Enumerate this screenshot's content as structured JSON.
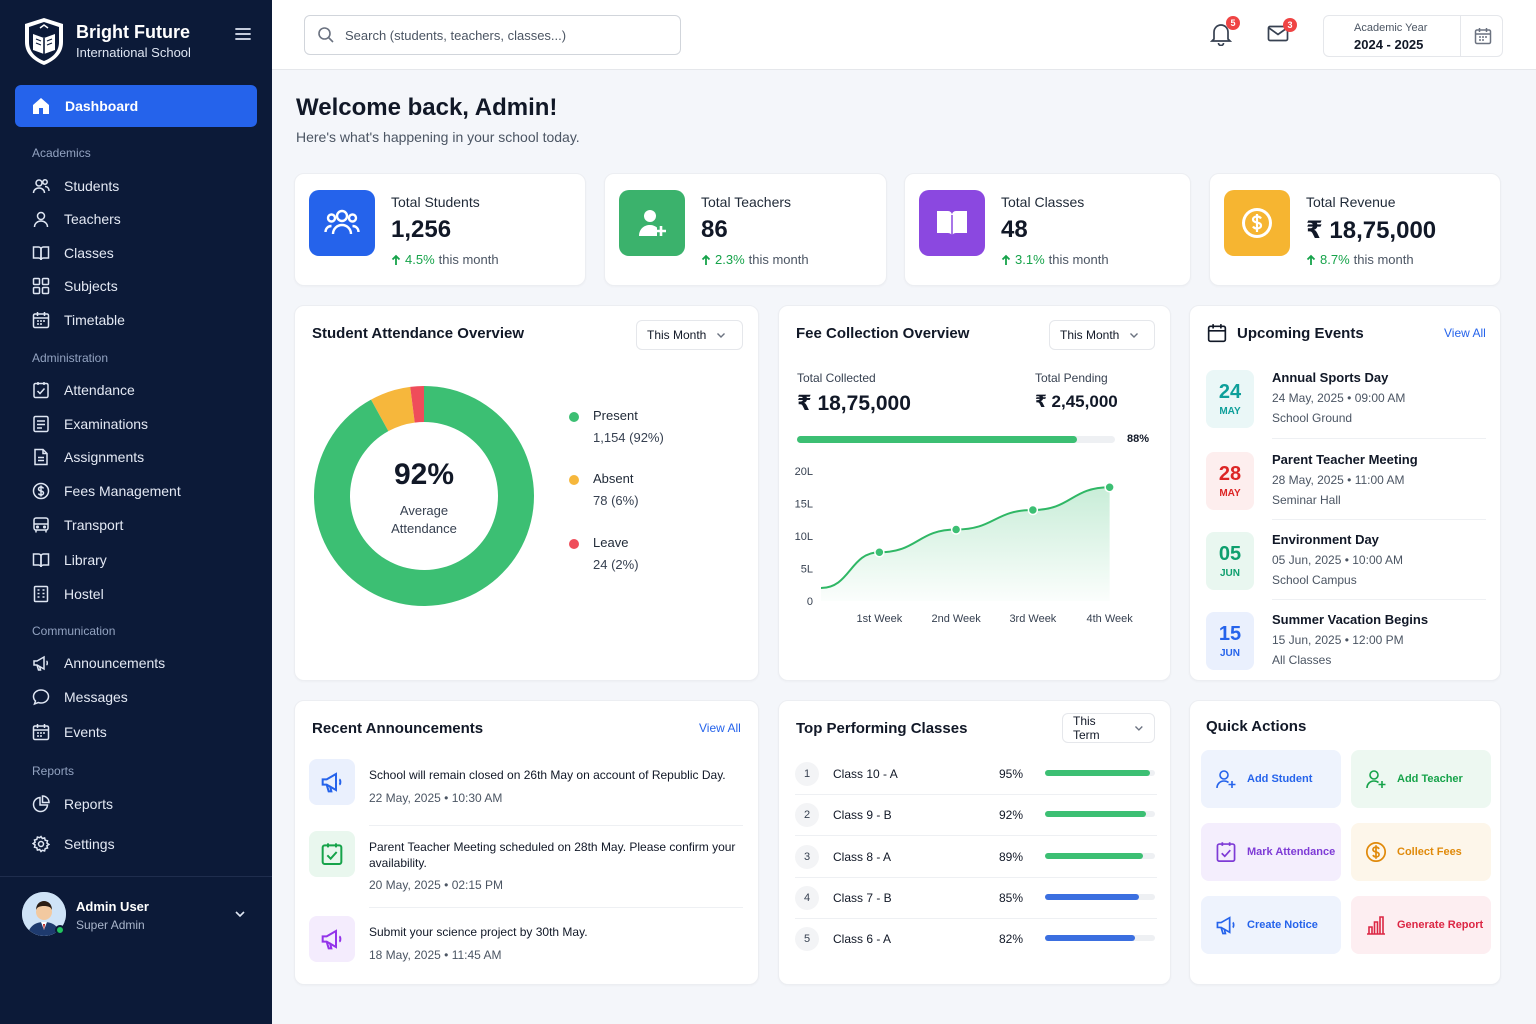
{
  "brand": {
    "name": "Bright Future",
    "subtitle": "International School"
  },
  "sidebar": {
    "active": {
      "label": "Dashboard"
    },
    "sections": {
      "academics": "Academics",
      "administration": "Administration",
      "communication": "Communication",
      "reports": "Reports"
    },
    "academics": [
      {
        "label": "Students",
        "icon": "users-icon"
      },
      {
        "label": "Teachers",
        "icon": "user-icon"
      },
      {
        "label": "Classes",
        "icon": "book-icon"
      },
      {
        "label": "Subjects",
        "icon": "grid-icon"
      },
      {
        "label": "Timetable",
        "icon": "calendar-icon"
      }
    ],
    "administration": [
      {
        "label": "Attendance",
        "icon": "clipboard-check-icon"
      },
      {
        "label": "Examinations",
        "icon": "exam-icon"
      },
      {
        "label": "Assignments",
        "icon": "file-icon"
      },
      {
        "label": "Fees Management",
        "icon": "dollar-icon"
      },
      {
        "label": "Transport",
        "icon": "bus-icon"
      },
      {
        "label": "Library",
        "icon": "book-open-icon"
      },
      {
        "label": "Hostel",
        "icon": "building-icon"
      }
    ],
    "communication": [
      {
        "label": "Announcements",
        "icon": "megaphone-icon"
      },
      {
        "label": "Messages",
        "icon": "message-icon"
      },
      {
        "label": "Events",
        "icon": "calendar-icon"
      }
    ],
    "reports": [
      {
        "label": "Reports",
        "icon": "pie-chart-icon"
      },
      {
        "label": "Settings",
        "icon": "gear-icon"
      }
    ],
    "user": {
      "name": "Admin User",
      "role": "Super Admin"
    }
  },
  "topbar": {
    "search_placeholder": "Search (students, teachers, classes...)",
    "notifications": "5",
    "messages": "3",
    "academic_year_label": "Academic Year",
    "academic_year": "2024 - 2025"
  },
  "welcome": {
    "title": "Welcome back, Admin!",
    "subtitle": "Here's what's happening in your school today."
  },
  "stats": [
    {
      "title": "Total Students",
      "value": "1,256",
      "change": "4.5%",
      "suffix": "this month",
      "color": "#2563eb"
    },
    {
      "title": "Total Teachers",
      "value": "86",
      "change": "2.3%",
      "suffix": "this month",
      "color": "#3bb26c"
    },
    {
      "title": "Total Classes",
      "value": "48",
      "change": "3.1%",
      "suffix": "this month",
      "color": "#8b48e0"
    },
    {
      "title": "Total Revenue",
      "value": "₹ 18,75,000",
      "change": "8.7%",
      "suffix": "this month",
      "color": "#f6b531"
    }
  ],
  "attendance": {
    "title": "Student Attendance Overview",
    "filter": "This Month",
    "center_value": "92%",
    "center_label_1": "Average",
    "center_label_2": "Attendance",
    "legend": [
      {
        "name": "Present",
        "value": "1,154 (92%)",
        "color": "#3cbf73",
        "pct": 92
      },
      {
        "name": "Absent",
        "value": "78 (6%)",
        "color": "#f6b73c",
        "pct": 6
      },
      {
        "name": "Leave",
        "value": "24 (2%)",
        "color": "#ef4d5a",
        "pct": 2
      }
    ]
  },
  "fees": {
    "title": "Fee Collection Overview",
    "filter": "This Month",
    "collected_label": "Total Collected",
    "collected": "₹ 18,75,000",
    "pending_label": "Total Pending",
    "pending": "₹ 2,45,000",
    "progress": 0.88,
    "progress_label": "88%"
  },
  "chart_data": {
    "type": "area",
    "categories": [
      "1st Week",
      "2nd Week",
      "3rd Week",
      "4th Week"
    ],
    "y_ticks": [
      "0",
      "5L",
      "10L",
      "15L",
      "20L"
    ],
    "ylim": [
      0,
      20
    ],
    "series": [
      {
        "values": [
          7.5,
          11,
          14,
          17.5
        ]
      }
    ]
  },
  "events": {
    "title": "Upcoming Events",
    "view_all": "View All",
    "items": [
      {
        "day": "24",
        "month": "MAY",
        "title": "Annual Sports Day",
        "datetime": "24 May, 2025 • 09:00 AM",
        "location": "School Ground",
        "color": "#0e9f9a",
        "bg": "#eaf7f7"
      },
      {
        "day": "28",
        "month": "MAY",
        "title": "Parent Teacher Meeting",
        "datetime": "28 May, 2025 • 11:00 AM",
        "location": "Seminar Hall",
        "color": "#dc2626",
        "bg": "#fdeeee"
      },
      {
        "day": "05",
        "month": "JUN",
        "title": "Environment Day",
        "datetime": "05 Jun, 2025 • 10:00 AM",
        "location": "School Campus",
        "color": "#0e9f6e",
        "bg": "#e9f7f0"
      },
      {
        "day": "15",
        "month": "JUN",
        "title": "Summer Vacation Begins",
        "datetime": "15 Jun, 2025 • 12:00 PM",
        "location": "All Classes",
        "color": "#2563eb",
        "bg": "#eaf0fd"
      }
    ]
  },
  "announcements": {
    "title": "Recent Announcements",
    "view_all": "View All",
    "items": [
      {
        "text": "School will remain closed on 26th May on account of Republic Day.",
        "date": "22 May, 2025 • 10:30 AM",
        "icon": "megaphone-icon",
        "color": "#2563eb",
        "bg": "#eaf0fd"
      },
      {
        "text": "Parent Teacher Meeting scheduled on 28th May. Please confirm your availability.",
        "date": "20 May, 2025 • 02:15 PM",
        "icon": "clipboard-check-icon",
        "color": "#16a34a",
        "bg": "#e9f7ee"
      },
      {
        "text": "Submit your science project by 30th May.",
        "date": "18 May, 2025 • 11:45 AM",
        "icon": "megaphone-icon",
        "color": "#9333ea",
        "bg": "#f4ecfd"
      }
    ]
  },
  "top_classes": {
    "title": "Top Performing Classes",
    "filter": "This Term",
    "items": [
      {
        "rank": "1",
        "name": "Class 10 - A",
        "pct": "95%",
        "value": 95,
        "color": "#3cbf73"
      },
      {
        "rank": "2",
        "name": "Class 9 - B",
        "pct": "92%",
        "value": 92,
        "color": "#3cbf73"
      },
      {
        "rank": "3",
        "name": "Class 8 - A",
        "pct": "89%",
        "value": 89,
        "color": "#3cbf73"
      },
      {
        "rank": "4",
        "name": "Class 7 - B",
        "pct": "85%",
        "value": 85,
        "color": "#3b6fe0"
      },
      {
        "rank": "5",
        "name": "Class 6 - A",
        "pct": "82%",
        "value": 82,
        "color": "#3b6fe0"
      }
    ]
  },
  "quick_actions": {
    "title": "Quick Actions",
    "items": [
      {
        "label": "Add Student",
        "icon": "user-plus-icon",
        "color": "#2563eb",
        "bg": "#eef3fd"
      },
      {
        "label": "Add Teacher",
        "icon": "user-plus-icon",
        "color": "#16a34a",
        "bg": "#edf8f1"
      },
      {
        "label": "Mark Attendance",
        "icon": "clipboard-check-icon",
        "color": "#7e3bd6",
        "bg": "#f4eefd"
      },
      {
        "label": "Collect Fees",
        "icon": "dollar-icon",
        "color": "#e08a0b",
        "bg": "#fdf6ea"
      },
      {
        "label": "Create Notice",
        "icon": "megaphone-icon",
        "color": "#2563eb",
        "bg": "#eef3fd"
      },
      {
        "label": "Generate Report",
        "icon": "bar-chart-icon",
        "color": "#dc2644",
        "bg": "#fdeef1"
      }
    ]
  }
}
